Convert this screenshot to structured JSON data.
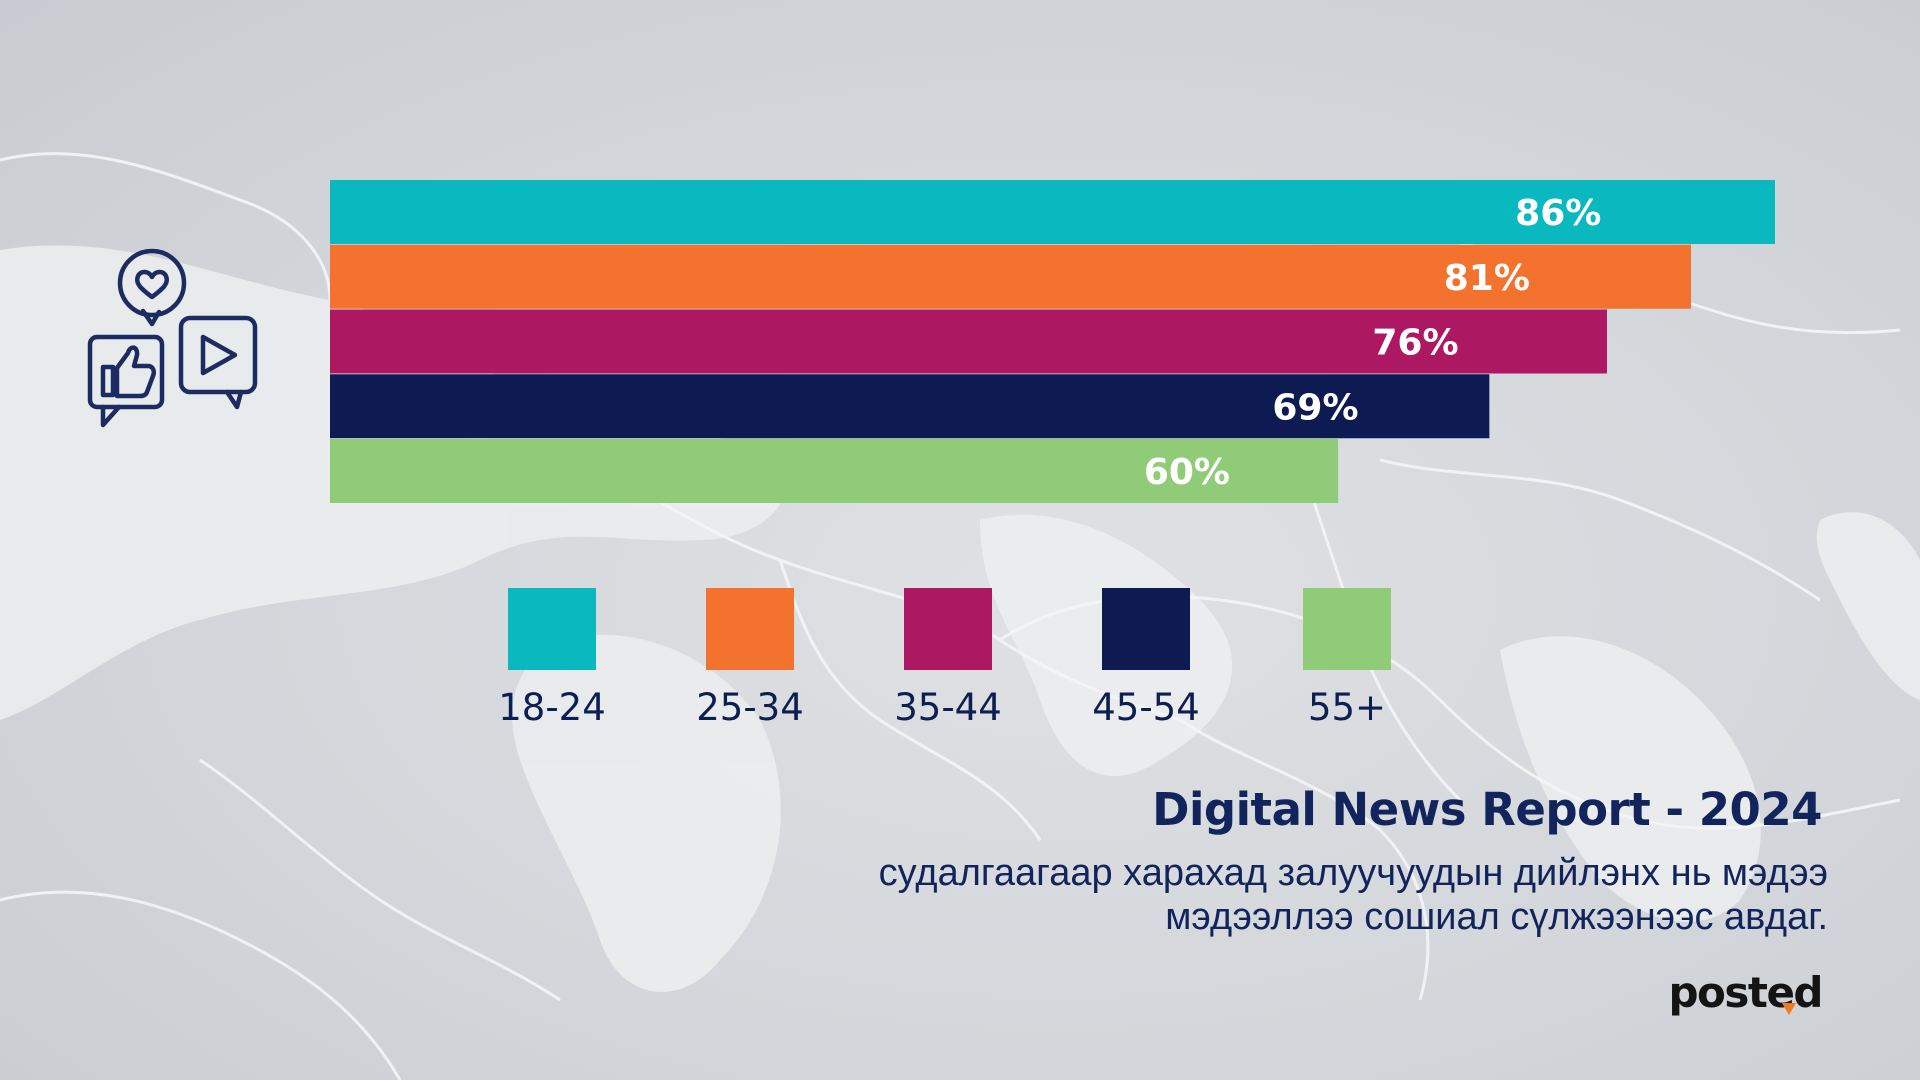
{
  "chart_data": {
    "type": "bar",
    "orientation": "horizontal",
    "categories": [
      "18-24",
      "25-34",
      "35-44",
      "45-54",
      "55+"
    ],
    "values": [
      86,
      81,
      76,
      69,
      60
    ],
    "value_labels": [
      "86%",
      "81%",
      "76%",
      "69%",
      "60%"
    ],
    "colors": [
      "#0ab8c0",
      "#f3722e",
      "#ad1862",
      "#0d1b52",
      "#90cb78"
    ],
    "legend": [
      "18-24",
      "25-34",
      "35-44",
      "45-54",
      "55+"
    ],
    "legend_placement": "below",
    "grid": false
  },
  "icons": [
    "heart-bubble-icon",
    "thumbs-up-bubble-icon",
    "play-bubble-icon"
  ],
  "report": {
    "title": "Digital News Report - 2024",
    "subtitle_line1": "судалгаагаар харахад залуучуудын дийлэнх нь мэдээ",
    "subtitle_line2": "мэдээллээ сошиал сүлжээнээс авдаг."
  },
  "brand": {
    "name": "posted",
    "accent": "#f07a22"
  }
}
